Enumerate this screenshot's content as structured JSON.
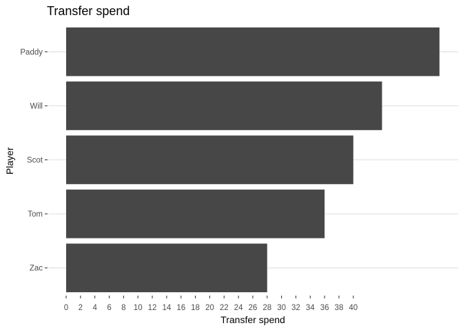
{
  "chart_data": {
    "type": "bar",
    "orientation": "horizontal",
    "title": "Transfer spend",
    "xlabel": "Transfer spend",
    "ylabel": "Player",
    "categories": [
      "Paddy",
      "Will",
      "Scot",
      "Tom",
      "Zac"
    ],
    "values": [
      52,
      44,
      40,
      36,
      28
    ],
    "xticks": [
      0,
      2,
      4,
      6,
      8,
      10,
      12,
      14,
      16,
      18,
      20,
      22,
      24,
      26,
      28,
      30,
      32,
      34,
      36,
      38,
      40
    ],
    "xlim": [
      0,
      54.5
    ],
    "grid": true,
    "bar_color": "#474747",
    "grid_color": "#dedede"
  }
}
